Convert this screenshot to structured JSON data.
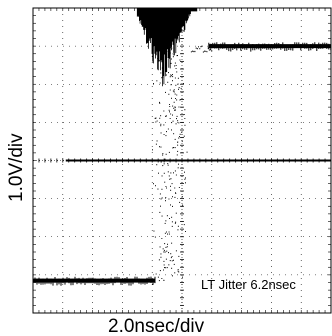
{
  "chart_data": {
    "type": "scatter",
    "subtype": "oscilloscope-eye-diagram",
    "xlabel": "2.0nsec/div",
    "ylabel": "1.0V/div",
    "annotation": "LT Jitter 6.2nsec",
    "grid": true,
    "grid_style": "dotted",
    "x_divisions": 10,
    "y_divisions": 8,
    "x_per_div_ns": 2.0,
    "y_per_div_v": 1.0,
    "xlim_div": [
      -5,
      5
    ],
    "ylim_div": [
      -4,
      4
    ],
    "colors": {
      "trace": "#000000",
      "grid": "#000000",
      "background": "#ffffff"
    },
    "series": [
      {
        "description": "low level trace",
        "segments": [
          {
            "x": [
              -5.0,
              -0.9
            ],
            "y": [
              -3.15,
              -3.15
            ]
          }
        ]
      },
      {
        "description": "high level trace",
        "segments": [
          {
            "x": [
              0.9,
              5.0
            ],
            "y": [
              3.0,
              3.0
            ]
          }
        ]
      },
      {
        "description": "reference baseline marker",
        "segments": [
          {
            "x": [
              -3.9,
              5.0
            ],
            "y": [
              0.0,
              0.0
            ]
          }
        ]
      },
      {
        "description": "rising edge transitions (jitter spread)",
        "segments": [
          {
            "x": [
              -1.6,
              0.7
            ],
            "y": [
              -3.15,
              3.0
            ]
          }
        ]
      },
      {
        "description": "overshoot ringing burst",
        "segments": [
          {
            "x": [
              -1.5,
              0.5
            ],
            "y": [
              2.2,
              4.0
            ]
          }
        ]
      }
    ]
  }
}
